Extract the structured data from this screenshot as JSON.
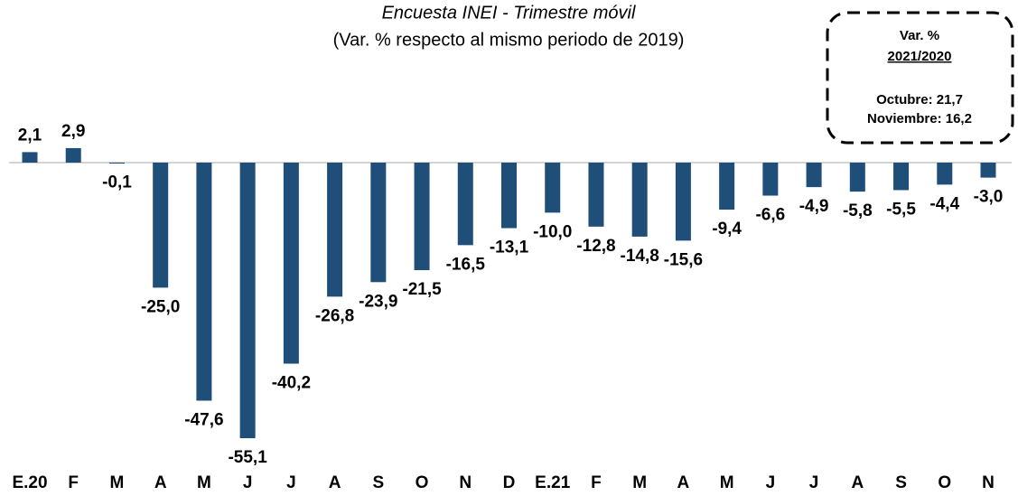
{
  "chart_data": {
    "type": "bar",
    "title": "Encuesta INEI - Trimestre móvil",
    "subtitle": "(Var. % respecto al mismo periodo de 2019)",
    "categories": [
      "E.20",
      "F",
      "M",
      "A",
      "M",
      "J",
      "J",
      "A",
      "S",
      "O",
      "N",
      "D",
      "E.21",
      "F",
      "M",
      "A",
      "M",
      "J",
      "J",
      "A",
      "S",
      "O",
      "N"
    ],
    "values": [
      2.1,
      2.9,
      -0.1,
      -25.0,
      -47.6,
      -55.1,
      -40.2,
      -26.8,
      -23.9,
      -21.5,
      -16.5,
      -13.1,
      -10.0,
      -12.8,
      -14.8,
      -15.6,
      -9.4,
      -6.6,
      -4.9,
      -5.8,
      -5.5,
      -4.4,
      -3.0
    ],
    "value_labels": [
      "2,1",
      "2,9",
      "-0,1",
      "-25,0",
      "-47,6",
      "-55,1",
      "-40,2",
      "-26,8",
      "-23,9",
      "-21,5",
      "-16,5",
      "-13,1",
      "-10,0",
      "-12,8",
      "-14,8",
      "-15,6",
      "-9,4",
      "-6,6",
      "-4,9",
      "-5,8",
      "-5,5",
      "-4,4",
      "-3,0"
    ],
    "color": "#1f4e79",
    "annotation": {
      "title": "Var. %",
      "period": "2021/2020",
      "lines": [
        "Octubre: 21,7",
        "Noviembre: 16,2"
      ]
    }
  }
}
